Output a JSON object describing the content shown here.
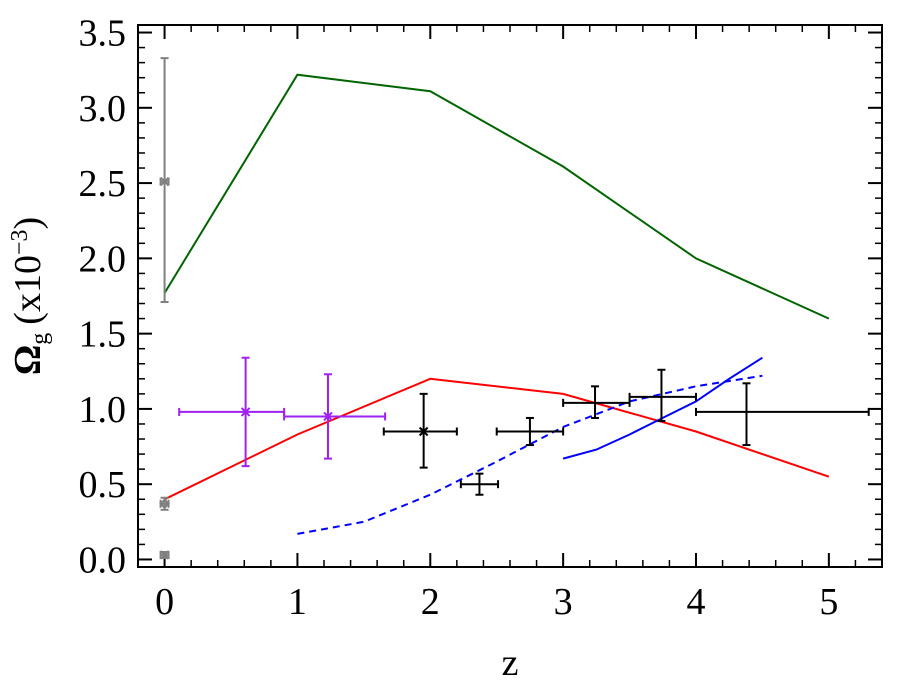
{
  "chart_data": {
    "type": "line",
    "xlabel": "z",
    "ylabel": {
      "main": "Ω",
      "sub": "g",
      "paren": "(x10",
      "sup": "−3",
      "close": ")"
    },
    "xlim": [
      -0.2,
      5.4
    ],
    "ylim": [
      -0.05,
      3.55
    ],
    "x_ticks": [
      "0",
      "1",
      "2",
      "3",
      "4",
      "5"
    ],
    "y_ticks": [
      "0.0",
      "0.5",
      "1.0",
      "1.5",
      "2.0",
      "2.5",
      "3.0",
      "3.5"
    ],
    "grid": false,
    "series": [
      {
        "style": "solid",
        "color": "#006400",
        "points": [
          [
            0,
            1.77
          ],
          [
            1,
            3.22
          ],
          [
            2,
            3.11
          ],
          [
            3,
            2.61
          ],
          [
            4,
            2.0
          ],
          [
            5,
            1.6
          ]
        ]
      },
      {
        "style": "solid",
        "color": "#ff0000",
        "points": [
          [
            0,
            0.4
          ],
          [
            1,
            0.83
          ],
          [
            2,
            1.2
          ],
          [
            3,
            1.1
          ],
          [
            4,
            0.85
          ],
          [
            5,
            0.55
          ]
        ]
      },
      {
        "style": "dashed",
        "color": "#0000ff",
        "points": [
          [
            1,
            0.17
          ],
          [
            1.5,
            0.25
          ],
          [
            2,
            0.43
          ],
          [
            2.5,
            0.65
          ],
          [
            3,
            0.88
          ],
          [
            3.5,
            1.05
          ],
          [
            4,
            1.15
          ],
          [
            4.5,
            1.22
          ]
        ]
      },
      {
        "style": "solid",
        "color": "#0000ff",
        "points": [
          [
            3,
            0.67
          ],
          [
            3.25,
            0.73
          ],
          [
            3.5,
            0.83
          ],
          [
            3.75,
            0.94
          ],
          [
            4,
            1.05
          ],
          [
            4.25,
            1.2
          ],
          [
            4.5,
            1.34
          ]
        ]
      }
    ],
    "error_points": [
      {
        "color": "#808080",
        "marker": "x",
        "x": 0,
        "y": 2.51,
        "xerr": 0.03,
        "yerr_low": 0.8,
        "yerr_high": 0.82
      },
      {
        "color": "#808080",
        "marker": "x",
        "x": 0,
        "y": 0.03,
        "xerr": 0.03,
        "yerr_low": 0.02,
        "yerr_high": 0.02
      },
      {
        "color": "#808080",
        "marker": "diamond",
        "x": 0,
        "y": 0.37,
        "xerr": 0.03,
        "yerr_low": 0.04,
        "yerr_high": 0.04
      },
      {
        "color": "#a020f0",
        "marker": "x",
        "x": 0.61,
        "y": 0.98,
        "xerr_low": 0.5,
        "xerr_high": 0.29,
        "yerr_low": 0.36,
        "yerr_high": 0.36
      },
      {
        "color": "#a020f0",
        "marker": "x",
        "x": 1.23,
        "y": 0.95,
        "xerr_low": 0.33,
        "xerr_high": 0.43,
        "yerr_low": 0.28,
        "yerr_high": 0.28
      },
      {
        "color": "#000000",
        "marker": "x",
        "x": 1.95,
        "y": 0.85,
        "xerr_low": 0.3,
        "xerr_high": 0.25,
        "yerr_low": 0.24,
        "yerr_high": 0.25
      },
      {
        "color": "#000000",
        "marker": "plus",
        "x": 2.37,
        "y": 0.5,
        "xerr_low": 0.14,
        "xerr_high": 0.14,
        "yerr_low": 0.07,
        "yerr_high": 0.07
      },
      {
        "color": "#000000",
        "marker": "plus",
        "x": 2.75,
        "y": 0.85,
        "xerr_low": 0.25,
        "xerr_high": 0.25,
        "yerr_low": 0.09,
        "yerr_high": 0.09
      },
      {
        "color": "#000000",
        "marker": "plus",
        "x": 3.24,
        "y": 1.04,
        "xerr_low": 0.24,
        "xerr_high": 0.26,
        "yerr_low": 0.1,
        "yerr_high": 0.11
      },
      {
        "color": "#000000",
        "marker": "plus",
        "x": 3.74,
        "y": 1.08,
        "xerr_low": 0.24,
        "xerr_high": 0.26,
        "yerr_low": 0.16,
        "yerr_high": 0.18
      },
      {
        "color": "#000000",
        "marker": "plus",
        "x": 4.38,
        "y": 0.98,
        "xerr_low": 0.38,
        "xerr_high": 0.92,
        "yerr_low": 0.22,
        "yerr_high": 0.19
      }
    ]
  }
}
